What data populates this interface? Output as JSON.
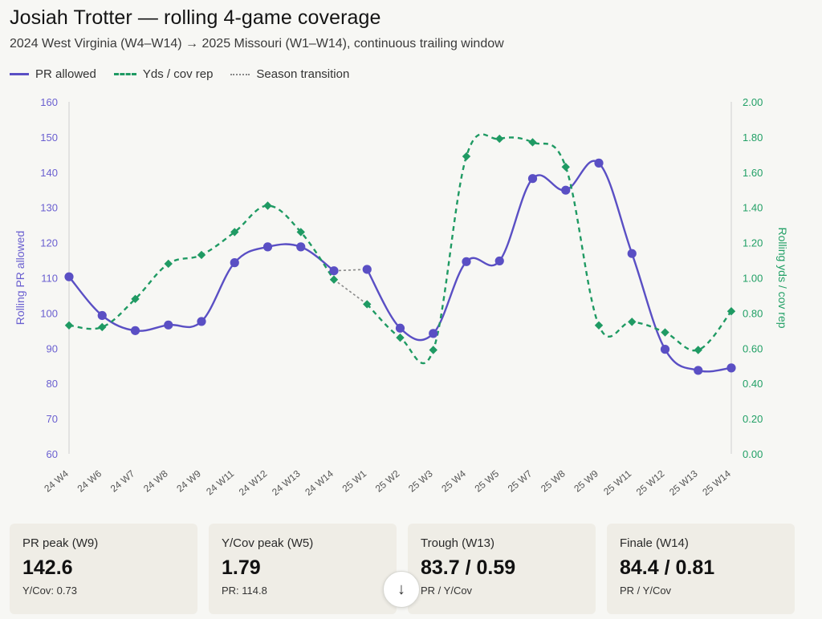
{
  "header": {
    "title": "Josiah Trotter — rolling 4-game coverage",
    "subtitle": "2024 West Virginia (W4–W14) → 2025 Missouri (W1–W14), continuous trailing window"
  },
  "legend": {
    "pr_label": "PR allowed",
    "yds_label": "Yds / cov rep",
    "season_label": "Season transition"
  },
  "colors": {
    "pr": "#5a4fc4",
    "yds": "#1f9a63",
    "season": "#8a8a8a",
    "grid": "#e6e6e2"
  },
  "chart_data": {
    "type": "line",
    "categories": [
      "24 W4",
      "24 W6",
      "24 W7",
      "24 W8",
      "24 W9",
      "24 W11",
      "24 W12",
      "24 W13",
      "24 W14",
      "25 W1",
      "25 W2",
      "25 W3",
      "25 W4",
      "25 W5",
      "25 W7",
      "25 W8",
      "25 W9",
      "25 W11",
      "25 W12",
      "25 W13",
      "25 W14"
    ],
    "y_left": {
      "label": "Rolling PR allowed",
      "lim": [
        60,
        160
      ],
      "ticks": [
        "60",
        "70",
        "80",
        "90",
        "100",
        "110",
        "120",
        "130",
        "140",
        "150",
        "160"
      ]
    },
    "y_right": {
      "label": "Rolling yds / cov rep",
      "lim": [
        0,
        2
      ],
      "ticks": [
        "0.00",
        "0.20",
        "0.40",
        "0.60",
        "0.80",
        "1.00",
        "1.20",
        "1.40",
        "1.60",
        "1.80",
        "2.00"
      ]
    },
    "series": [
      {
        "name": "PR allowed",
        "axis": "left",
        "style": "solid",
        "marker": "circle",
        "values": [
          110.3,
          99.3,
          95.0,
          96.6,
          97.6,
          114.3,
          118.8,
          118.8,
          112.0,
          112.4,
          95.7,
          94.2,
          114.6,
          114.8,
          138.2,
          134.9,
          142.6,
          116.9,
          89.7,
          83.7,
          84.4
        ]
      },
      {
        "name": "Yds / cov rep",
        "axis": "right",
        "style": "dashed",
        "marker": "diamond",
        "values": [
          0.73,
          0.72,
          0.88,
          1.08,
          1.13,
          1.26,
          1.41,
          1.26,
          0.99,
          0.85,
          0.66,
          0.59,
          1.69,
          1.79,
          1.77,
          1.63,
          0.73,
          0.75,
          0.69,
          0.59,
          0.81
        ]
      }
    ],
    "season_transition": {
      "from_index": 8,
      "to_index": 9
    },
    "grid": false
  },
  "cards": [
    {
      "label": "PR peak (W9)",
      "value": "142.6",
      "sub": "Y/Cov: 0.73"
    },
    {
      "label": "Y/Cov peak (W5)",
      "value": "1.79",
      "sub": "PR: 114.8"
    },
    {
      "label": "Trough (W13)",
      "value": "83.7 / 0.59",
      "sub": "PR / Y/Cov"
    },
    {
      "label": "Finale (W14)",
      "value": "84.4 / 0.81",
      "sub": "PR / Y/Cov"
    }
  ],
  "scroll_button": {
    "icon": "arrow-down-icon",
    "glyph": "↓"
  }
}
